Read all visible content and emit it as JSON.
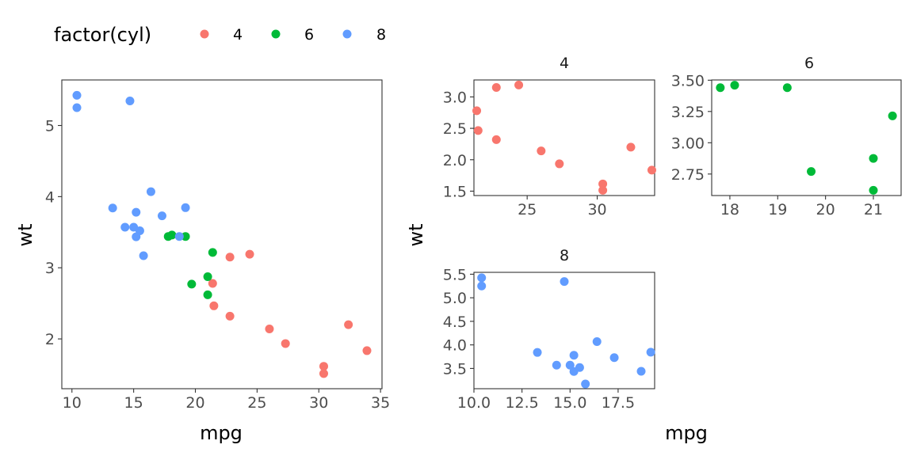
{
  "colors": {
    "4": "#F8766D",
    "6": "#00BA38",
    "8": "#619CFF"
  },
  "legend": {
    "title": "factor(cyl)",
    "items": [
      {
        "label": "4",
        "color": "#F8766D"
      },
      {
        "label": "6",
        "color": "#00BA38"
      },
      {
        "label": "8",
        "color": "#619CFF"
      }
    ]
  },
  "main_plot": {
    "xlabel": "mpg",
    "ylabel": "wt"
  },
  "facet_plot": {
    "xlabel": "mpg",
    "ylabel": "wt"
  },
  "chart_data": [
    {
      "type": "scatter",
      "title": "",
      "xlabel": "mpg",
      "ylabel": "wt",
      "xlim": [
        9.18,
        35.12
      ],
      "ylim": [
        1.3,
        5.64
      ],
      "xticks": [
        10,
        15,
        20,
        25,
        30,
        35
      ],
      "xticklabels": [
        "10",
        "15",
        "20",
        "25",
        "30",
        "35"
      ],
      "yticks": [
        2,
        3,
        4,
        5
      ],
      "yticklabels": [
        "2",
        "3",
        "4",
        "5"
      ],
      "grid": false,
      "legend": "top-left",
      "series": [
        {
          "name": "4",
          "color": "#F8766D",
          "points": [
            [
              22.8,
              2.32
            ],
            [
              24.4,
              3.19
            ],
            [
              22.8,
              3.15
            ],
            [
              32.4,
              2.2
            ],
            [
              30.4,
              1.615
            ],
            [
              33.9,
              1.835
            ],
            [
              21.5,
              2.465
            ],
            [
              27.3,
              1.935
            ],
            [
              26.0,
              2.14
            ],
            [
              30.4,
              1.513
            ],
            [
              21.4,
              2.78
            ]
          ]
        },
        {
          "name": "6",
          "color": "#00BA38",
          "points": [
            [
              21.0,
              2.62
            ],
            [
              21.0,
              2.875
            ],
            [
              21.4,
              3.215
            ],
            [
              18.1,
              3.46
            ],
            [
              19.2,
              3.44
            ],
            [
              17.8,
              3.44
            ],
            [
              19.7,
              2.77
            ]
          ]
        },
        {
          "name": "8",
          "color": "#619CFF",
          "points": [
            [
              18.7,
              3.44
            ],
            [
              14.3,
              3.57
            ],
            [
              16.4,
              4.07
            ],
            [
              17.3,
              3.73
            ],
            [
              15.2,
              3.78
            ],
            [
              10.4,
              5.25
            ],
            [
              10.4,
              5.424
            ],
            [
              14.7,
              5.345
            ],
            [
              15.5,
              3.52
            ],
            [
              15.2,
              3.435
            ],
            [
              13.3,
              3.84
            ],
            [
              19.2,
              3.845
            ],
            [
              15.8,
              3.17
            ],
            [
              15.0,
              3.57
            ]
          ]
        }
      ]
    },
    {
      "type": "scatter",
      "title": "4",
      "xlabel": "mpg",
      "ylabel": "wt",
      "xlim": [
        21.2,
        34.1
      ],
      "ylim": [
        1.43,
        3.27
      ],
      "xticks": [
        25,
        30
      ],
      "xticklabels": [
        "25",
        "30"
      ],
      "yticks": [
        1.5,
        2.0,
        2.5,
        3.0
      ],
      "yticklabels": [
        "1.5",
        "2.0",
        "2.5",
        "3.0"
      ],
      "grid": false,
      "series": [
        {
          "name": "4",
          "color": "#F8766D",
          "points": [
            [
              22.8,
              2.32
            ],
            [
              24.4,
              3.19
            ],
            [
              22.8,
              3.15
            ],
            [
              32.4,
              2.2
            ],
            [
              30.4,
              1.615
            ],
            [
              33.9,
              1.835
            ],
            [
              21.5,
              2.465
            ],
            [
              27.3,
              1.935
            ],
            [
              26.0,
              2.14
            ],
            [
              30.4,
              1.513
            ],
            [
              21.4,
              2.78
            ]
          ]
        }
      ]
    },
    {
      "type": "scatter",
      "title": "6",
      "xlabel": "mpg",
      "ylabel": "wt",
      "xlim": [
        17.62,
        21.58
      ],
      "ylim": [
        2.578,
        3.502
      ],
      "xticks": [
        18,
        19,
        20,
        21
      ],
      "xticklabels": [
        "18",
        "19",
        "20",
        "21"
      ],
      "yticks": [
        2.75,
        3.0,
        3.25,
        3.5
      ],
      "yticklabels": [
        "2.75",
        "3.00",
        "3.25",
        "3.50"
      ],
      "grid": false,
      "series": [
        {
          "name": "6",
          "color": "#00BA38",
          "points": [
            [
              21.0,
              2.62
            ],
            [
              21.0,
              2.875
            ],
            [
              21.4,
              3.215
            ],
            [
              18.1,
              3.46
            ],
            [
              19.2,
              3.44
            ],
            [
              17.8,
              3.44
            ],
            [
              19.7,
              2.77
            ]
          ]
        }
      ]
    },
    {
      "type": "scatter",
      "title": "8",
      "xlabel": "mpg",
      "ylabel": "wt",
      "xlim": [
        10.0,
        19.4
      ],
      "ylim": [
        3.07,
        5.54
      ],
      "xticks": [
        10.0,
        12.5,
        15.0,
        17.5
      ],
      "xticklabels": [
        "10.0",
        "12.5",
        "15.0",
        "17.5"
      ],
      "yticks": [
        3.5,
        4.0,
        4.5,
        5.0,
        5.5
      ],
      "yticklabels": [
        "3.5",
        "4.0",
        "4.5",
        "5.0",
        "5.5"
      ],
      "grid": false,
      "series": [
        {
          "name": "8",
          "color": "#619CFF",
          "points": [
            [
              18.7,
              3.44
            ],
            [
              14.3,
              3.57
            ],
            [
              16.4,
              4.07
            ],
            [
              17.3,
              3.73
            ],
            [
              15.2,
              3.78
            ],
            [
              10.4,
              5.25
            ],
            [
              10.4,
              5.424
            ],
            [
              14.7,
              5.345
            ],
            [
              15.5,
              3.52
            ],
            [
              15.2,
              3.435
            ],
            [
              13.3,
              3.84
            ],
            [
              19.2,
              3.845
            ],
            [
              15.8,
              3.17
            ],
            [
              15.0,
              3.57
            ]
          ]
        }
      ]
    }
  ]
}
